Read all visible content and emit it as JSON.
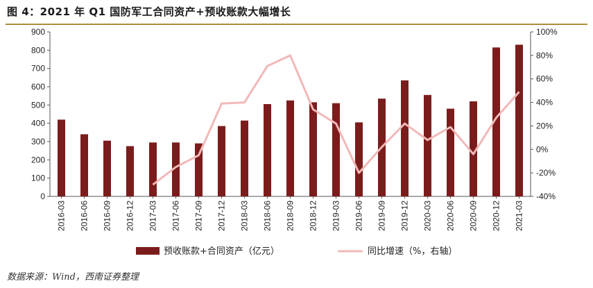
{
  "header": {
    "title": "图 4：2021 年 Q1 国防军工合同资产+预收账款大幅增长"
  },
  "footer": {
    "source": "数据来源：Wind，西南证券整理"
  },
  "chart_data": {
    "type": "bar",
    "categories": [
      "2016-03",
      "2016-06",
      "2016-09",
      "2016-12",
      "2017-03",
      "2017-06",
      "2017-09",
      "2017-12",
      "2018-03",
      "2018-06",
      "2018-09",
      "2018-12",
      "2019-03",
      "2019-06",
      "2019-09",
      "2019-12",
      "2020-03",
      "2020-06",
      "2020-09",
      "2020-12",
      "2021-03"
    ],
    "series": [
      {
        "name": "预收账款+合同资产（亿元）",
        "type": "bar",
        "axis": "left",
        "color": "#7b1c1c",
        "values": [
          420,
          340,
          305,
          275,
          295,
          295,
          290,
          385,
          415,
          505,
          525,
          515,
          510,
          405,
          535,
          635,
          555,
          480,
          520,
          815,
          830
        ]
      },
      {
        "name": "同比增速（%，右轴）",
        "type": "line",
        "axis": "right",
        "color": "#f2b8b8",
        "values": [
          null,
          null,
          null,
          null,
          -30,
          -15,
          -5,
          39,
          40,
          71,
          80,
          34,
          22,
          -20,
          2,
          22,
          8,
          19,
          -4,
          27,
          49
        ]
      }
    ],
    "ylim_left": [
      0,
      900
    ],
    "yticks_left": [
      "0",
      "100",
      "200",
      "300",
      "400",
      "500",
      "600",
      "700",
      "800",
      "900"
    ],
    "ylim_right": [
      -40,
      100
    ],
    "yticks_right": [
      "-40%",
      "-20%",
      "0%",
      "20%",
      "40%",
      "60%",
      "80%",
      "100%"
    ],
    "grid": false,
    "legend_position": "bottom"
  }
}
